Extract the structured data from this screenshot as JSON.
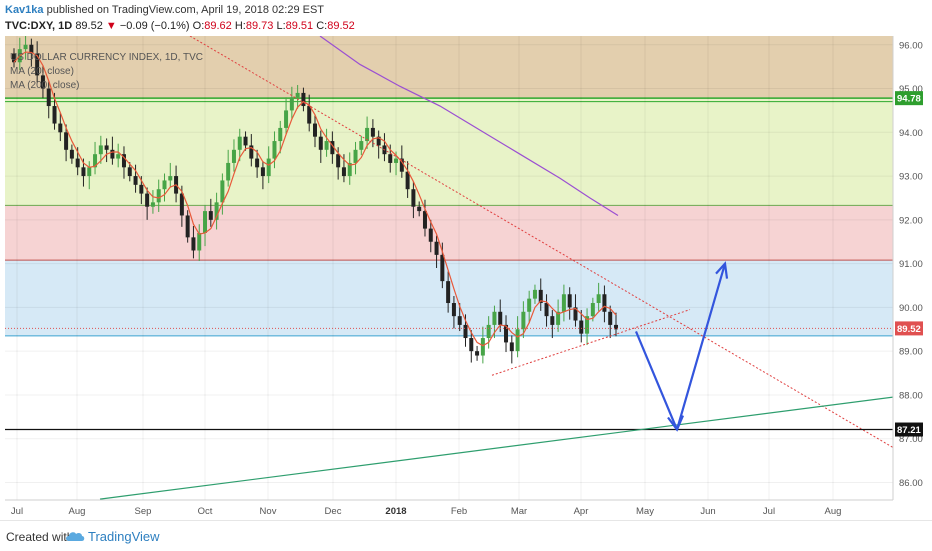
{
  "header": {
    "author": "Kav1ka",
    "published_text": " published on TradingView.com, April 19, 2018 02:29 EST",
    "symbol": "TVC:DXY, 1D",
    "last": "89.52",
    "change": "−0.09 (−0.1%)",
    "o_label": "O:",
    "o_value": "89.62",
    "h_label": "H:",
    "h_value": "89.73",
    "l_label": "L:",
    "l_value": "89.51",
    "c_label": "C:",
    "c_value": "89.52"
  },
  "legend": {
    "title": "US DOLLAR CURRENCY INDEX, 1D, TVC",
    "ma1": "MA (20, close)",
    "ma2": "MA (200, close)"
  },
  "footer": {
    "created": "Created with",
    "brand": "TradingView"
  },
  "colors": {
    "zone_tan": "#e3cfae",
    "zone_green": "#e8f3c8",
    "zone_red": "#f6d3d3",
    "zone_blue": "#d6e9f6",
    "ma20": "#e8593a",
    "ma200": "#9b4fd2",
    "candle_up": "#47a447",
    "candle_down": "#222222",
    "arrow": "#3355dd",
    "support_green": "#2e9e6e",
    "trend_red": "#e04040"
  },
  "chart_data": {
    "type": "candlestick",
    "x_axis": {
      "labels": [
        "Jul",
        "Aug",
        "Sep",
        "Oct",
        "Nov",
        "Dec",
        "2018",
        "Feb",
        "Mar",
        "Apr",
        "May",
        "Jun",
        "Jul",
        "Aug"
      ],
      "bold": [
        "2018"
      ]
    },
    "y_axis": {
      "ticks": [
        "96.00",
        "95.00",
        "94.00",
        "93.00",
        "92.00",
        "91.00",
        "90.00",
        "89.00",
        "88.00",
        "87.00",
        "86.00"
      ],
      "range": [
        85.6,
        96.2
      ]
    },
    "price_tags": [
      {
        "value": 94.78,
        "label": "94.78",
        "color": "#2e9e2e"
      },
      {
        "value": 89.52,
        "label": "89.52",
        "color": "#e05050"
      },
      {
        "value": 87.21,
        "label": "87.21",
        "color": "#111111"
      }
    ],
    "zones": [
      {
        "from": 94.78,
        "to": 96.2,
        "color_key": "zone_tan"
      },
      {
        "from": 92.33,
        "to": 94.78,
        "color_key": "zone_green"
      },
      {
        "from": 91.08,
        "to": 92.33,
        "color_key": "zone_red"
      },
      {
        "from": 89.35,
        "to": 91.08,
        "color_key": "zone_blue"
      }
    ],
    "series_close": [
      95.6,
      95.9,
      96.0,
      95.8,
      95.3,
      95.0,
      94.6,
      94.2,
      94.0,
      93.6,
      93.4,
      93.2,
      93.0,
      93.2,
      93.5,
      93.7,
      93.6,
      93.4,
      93.5,
      93.2,
      93.0,
      92.8,
      92.6,
      92.3,
      92.4,
      92.7,
      92.9,
      93.0,
      92.6,
      92.1,
      91.6,
      91.3,
      91.7,
      92.2,
      92.0,
      92.4,
      92.9,
      93.3,
      93.6,
      93.9,
      93.7,
      93.4,
      93.2,
      93.0,
      93.4,
      93.8,
      94.1,
      94.5,
      94.8,
      94.9,
      94.6,
      94.2,
      93.9,
      93.6,
      93.8,
      93.5,
      93.2,
      93.0,
      93.3,
      93.6,
      93.8,
      94.1,
      93.9,
      93.7,
      93.5,
      93.3,
      93.4,
      93.1,
      92.7,
      92.3,
      92.2,
      91.8,
      91.5,
      91.2,
      90.6,
      90.1,
      89.8,
      89.6,
      89.3,
      89.0,
      88.9,
      89.3,
      89.6,
      89.9,
      89.6,
      89.2,
      89.0,
      89.5,
      89.9,
      90.2,
      90.4,
      90.1,
      89.8,
      89.6,
      89.9,
      90.3,
      90.0,
      89.7,
      89.4,
      89.8,
      90.1,
      90.3,
      89.9,
      89.6,
      89.5
    ],
    "annotations": {
      "projection_path": [
        89.5,
        87.21,
        91.0
      ],
      "levels": [
        94.78,
        92.33,
        91.08,
        89.35,
        87.21
      ]
    }
  }
}
